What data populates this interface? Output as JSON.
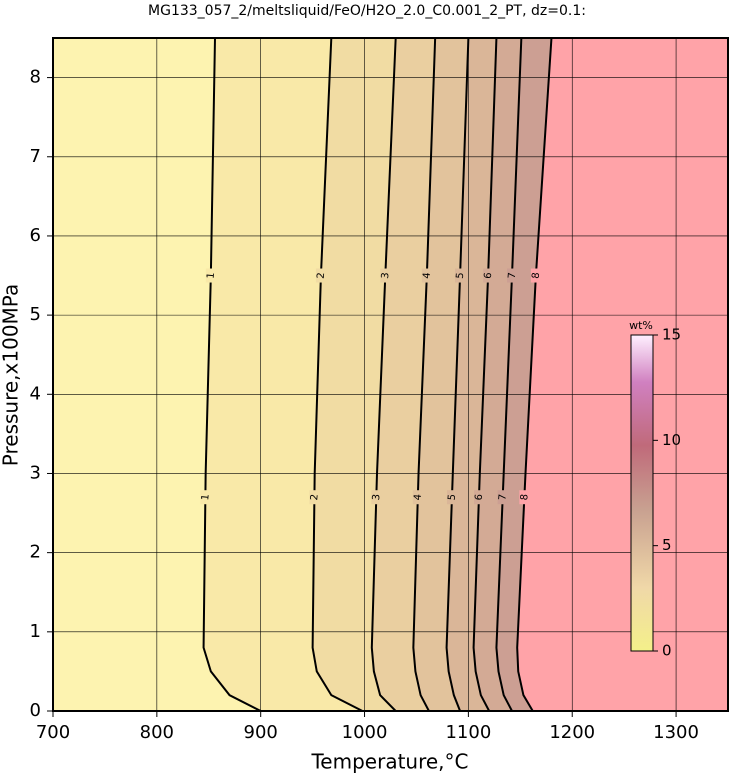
{
  "chart_data": {
    "type": "contour",
    "title": "MG133_057_2/meltsliquid/FeO/H2O_2.0_C0.001_2_PT, dz=0.1:",
    "x_label": "Temperature,°C",
    "y_label": "Pressure,x100MPa",
    "xlim": [
      700,
      1350
    ],
    "ylim": [
      0,
      8.5
    ],
    "xticks": [
      700,
      800,
      900,
      1000,
      1100,
      1200,
      1300
    ],
    "yticks": [
      0,
      1,
      2,
      3,
      4,
      5,
      6,
      7,
      8
    ],
    "grid": true,
    "background_color": "#fdf3b0",
    "pressures": [
      0,
      0.2,
      0.5,
      0.8,
      3,
      5.5,
      8.5
    ],
    "contours": [
      {
        "level": 1,
        "color": "#f9e9a8",
        "temperatures": [
          900,
          870,
          852,
          845,
          847,
          852,
          856
        ]
      },
      {
        "level": 2,
        "color": "#f1dca3",
        "temperatures": [
          998,
          968,
          954,
          950,
          952,
          958,
          968
        ]
      },
      {
        "level": 3,
        "color": "#eacfa0",
        "temperatures": [
          1030,
          1015,
          1009,
          1007,
          1012,
          1020,
          1030
        ]
      },
      {
        "level": 4,
        "color": "#e2c39c",
        "temperatures": [
          1062,
          1054,
          1049,
          1047,
          1052,
          1060,
          1068
        ]
      },
      {
        "level": 5,
        "color": "#dab698",
        "temperatures": [
          1092,
          1086,
          1081,
          1079,
          1085,
          1092,
          1100
        ]
      },
      {
        "level": 6,
        "color": "#d3aa95",
        "temperatures": [
          1120,
          1112,
          1107,
          1105,
          1111,
          1119,
          1127
        ]
      },
      {
        "level": 7,
        "color": "#cc9f93",
        "temperatures": [
          1142,
          1134,
          1129,
          1127,
          1134,
          1142,
          1151
        ]
      },
      {
        "level": 8,
        "color": "#ffa3a8",
        "temperatures": [
          1162,
          1153,
          1148,
          1147,
          1155,
          1165,
          1180
        ]
      }
    ],
    "colorbar": {
      "label": "wt%",
      "lim": [
        0,
        15
      ],
      "ticks": [
        0,
        5,
        10,
        15
      ]
    }
  }
}
